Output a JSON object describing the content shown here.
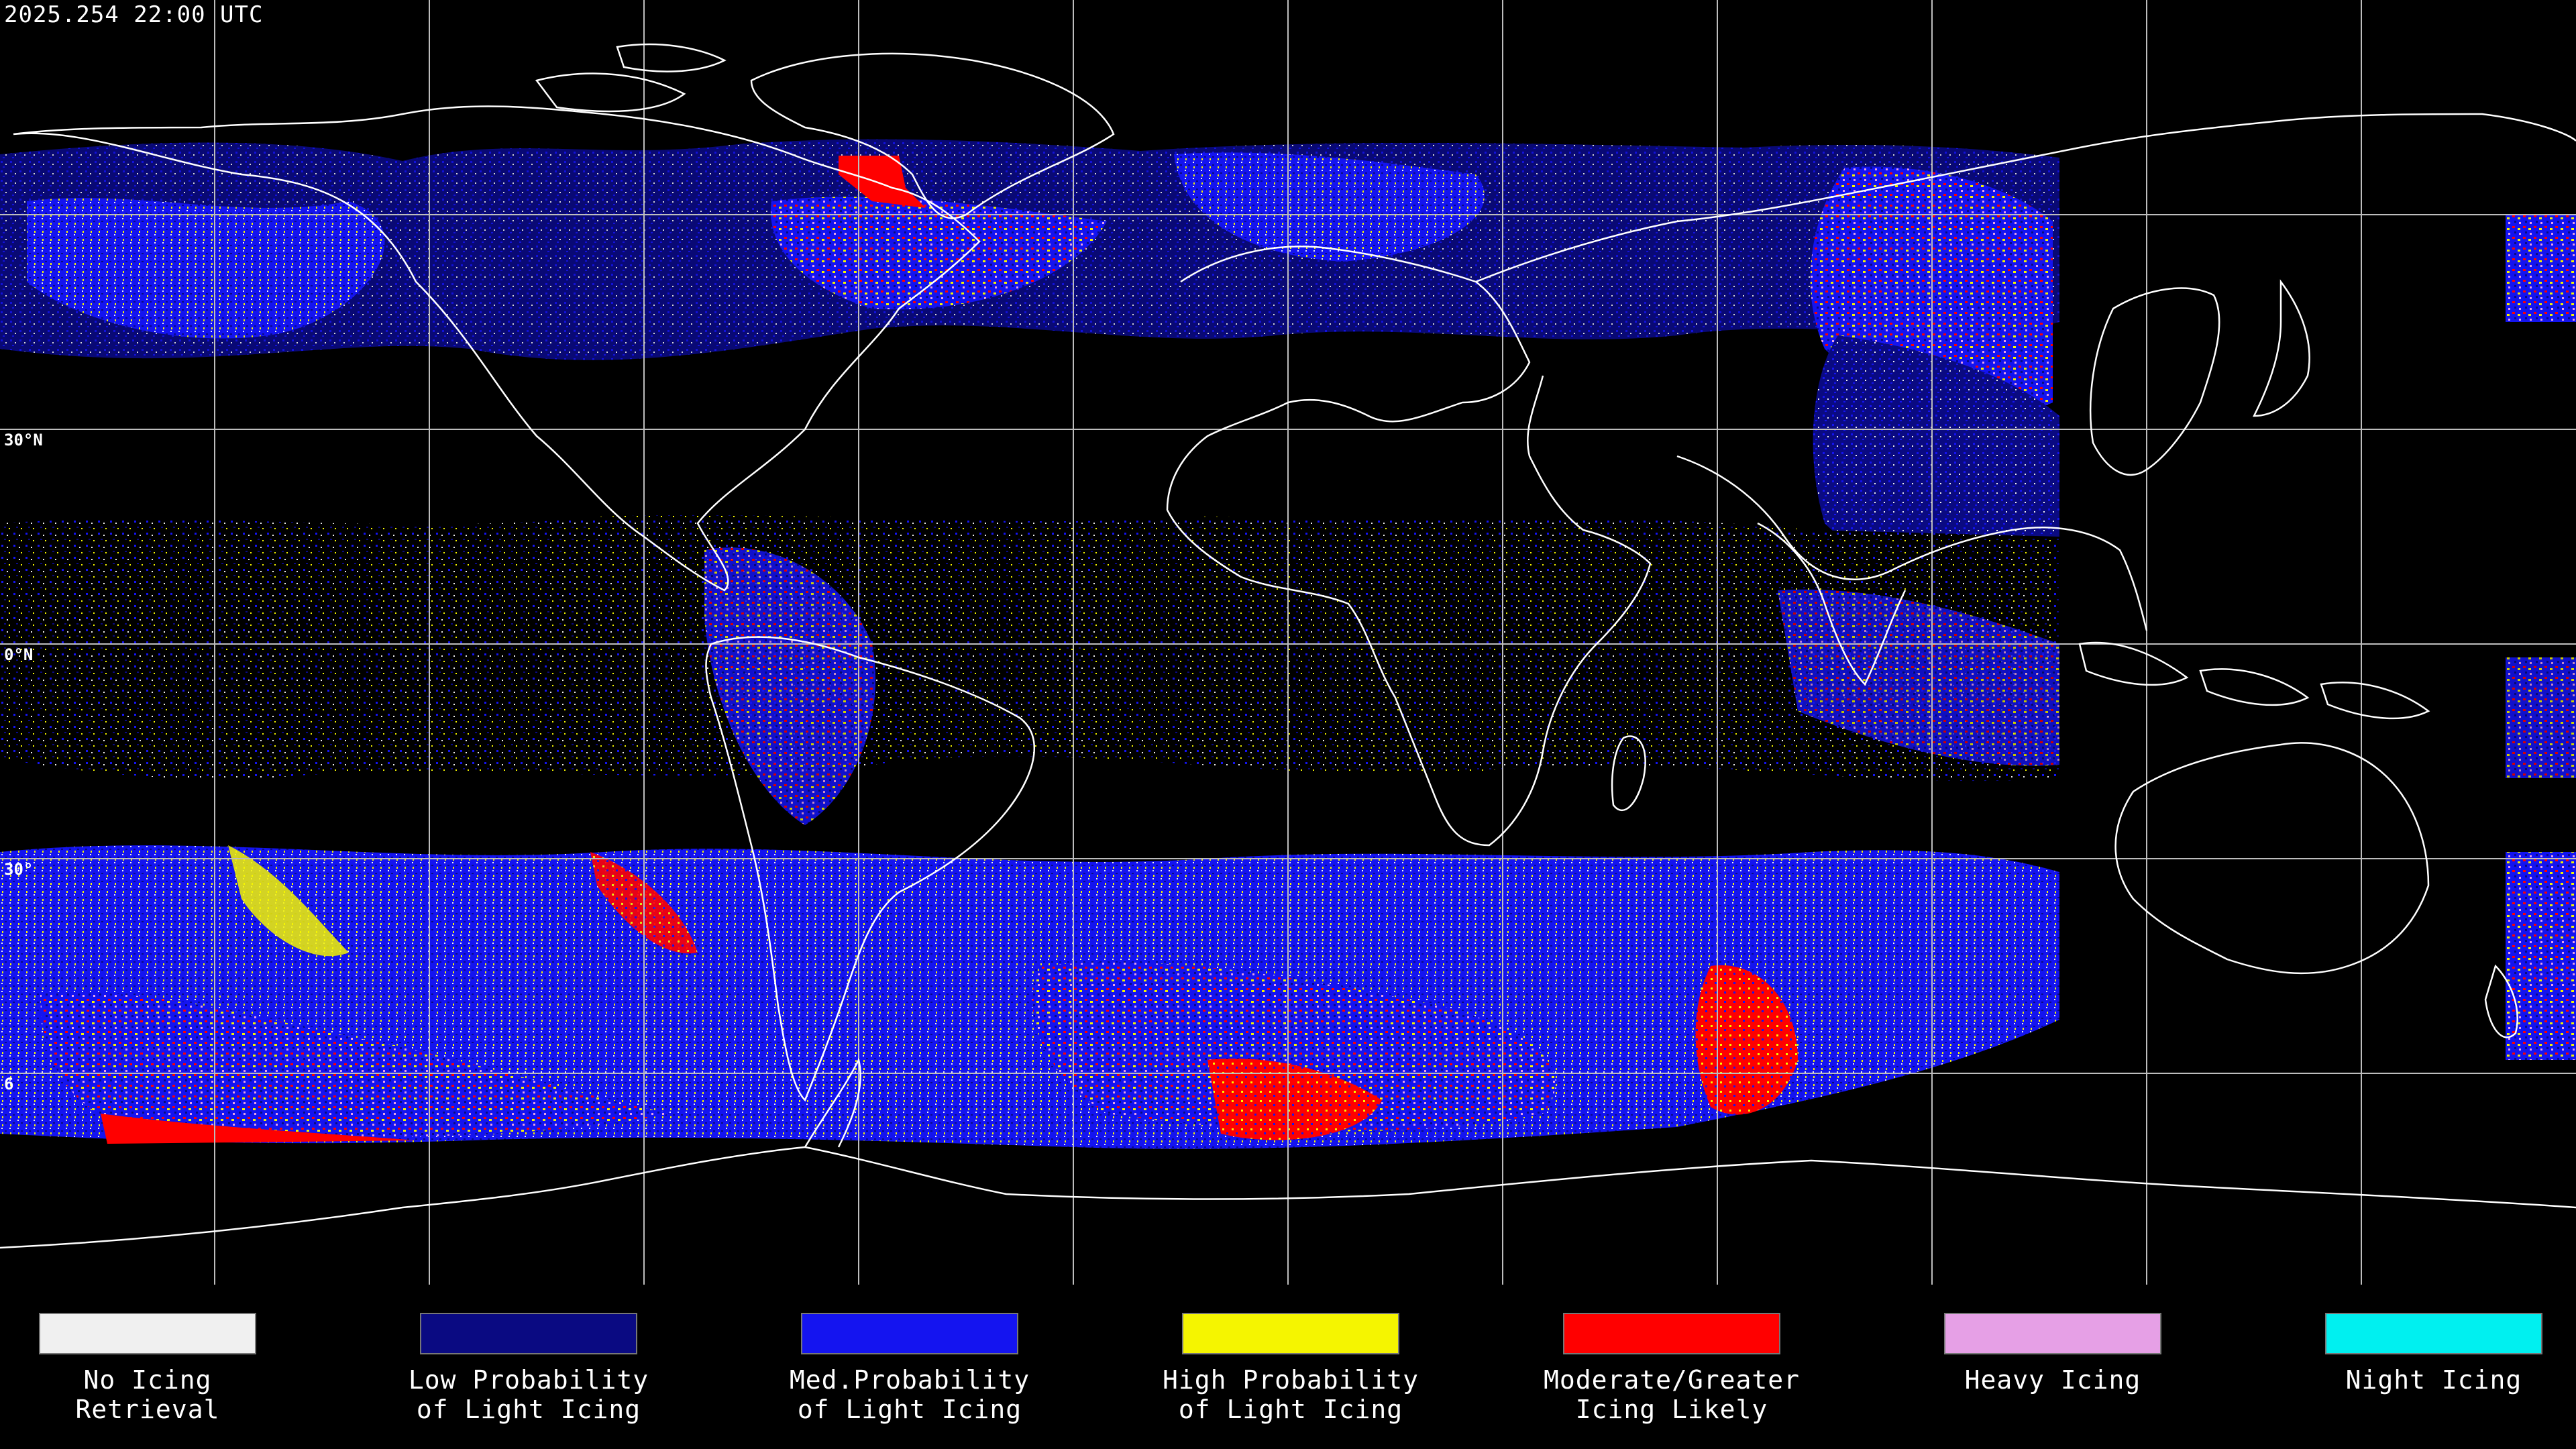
{
  "timestamp": "2025.254 22:00 UTC",
  "lat_labels": {
    "lat_30n": "30°N",
    "lat_0": "0°N",
    "lat_30s": "30°",
    "lat_60s": "6"
  },
  "legend": [
    {
      "line1": "No Icing",
      "line2": "Retrieval",
      "color": "#f0f0f0"
    },
    {
      "line1": "Low Probability",
      "line2": "of Light Icing",
      "color": "#0a0a82"
    },
    {
      "line1": "Med.Probability",
      "line2": "of Light Icing",
      "color": "#1414f0"
    },
    {
      "line1": "High Probability",
      "line2": "of Light Icing",
      "color": "#f5f500"
    },
    {
      "line1": "Moderate/Greater",
      "line2": "Icing Likely",
      "color": "#ff0000"
    },
    {
      "line1": "Heavy Icing",
      "line2": "",
      "color": "#e6a0e6"
    },
    {
      "line1": "Night Icing",
      "line2": "",
      "color": "#00f0f0"
    }
  ]
}
